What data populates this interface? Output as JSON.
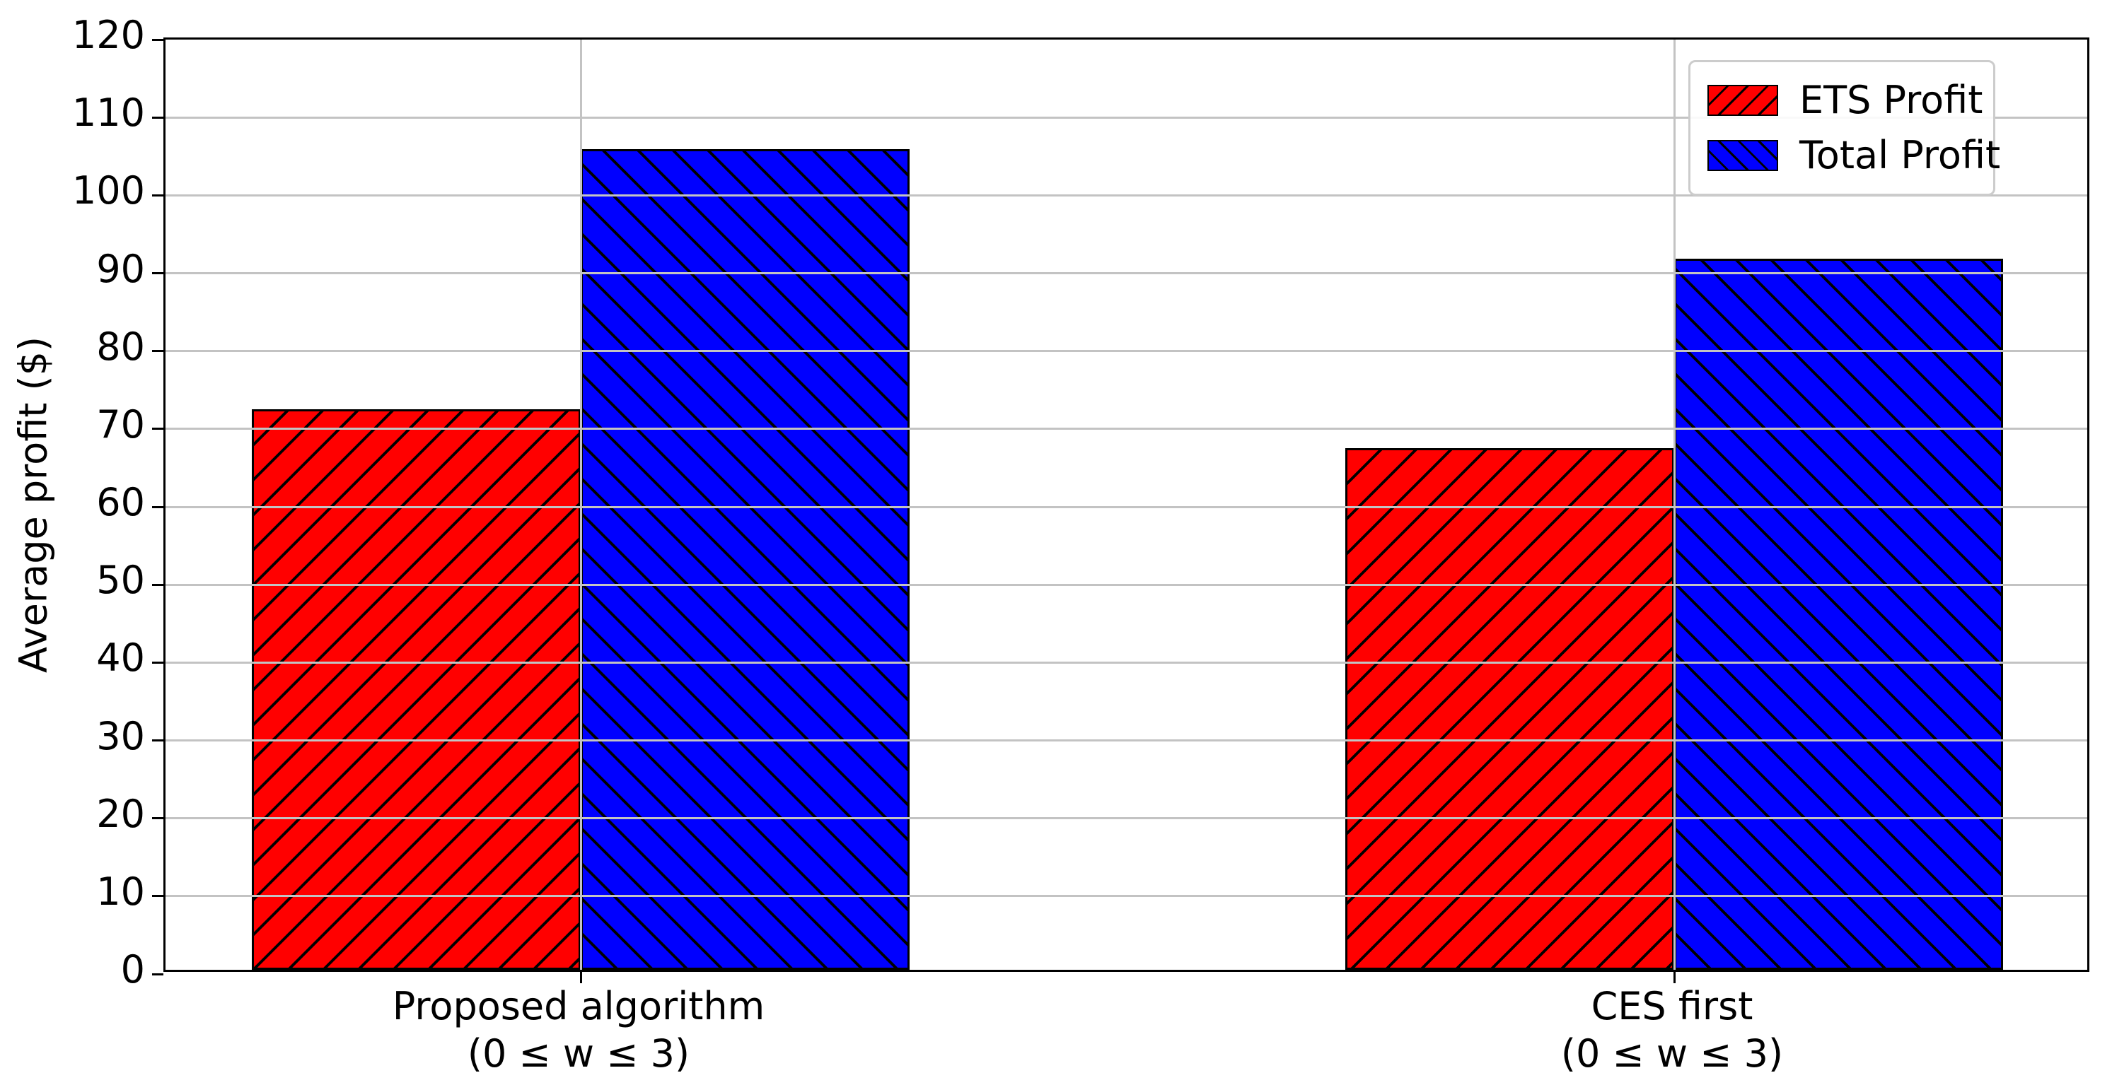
{
  "chart_data": {
    "type": "bar",
    "categories": [
      {
        "line1": "Proposed algorithm",
        "line2": "(0 ≤ w ≤ 3)"
      },
      {
        "line1": "CES first",
        "line2": "(0 ≤ w ≤ 3)"
      }
    ],
    "series": [
      {
        "name": "ETS Profit",
        "color": "#ff0000",
        "hatch": "/",
        "values": [
          72.0,
          67.0
        ]
      },
      {
        "name": "Total Profit",
        "color": "#0000ff",
        "hatch": "\\",
        "values": [
          105.4,
          91.3
        ]
      }
    ],
    "title": "",
    "xlabel": "",
    "ylabel": "Average profit ($)",
    "ylim": [
      0,
      120
    ],
    "yticks": [
      0,
      10,
      20,
      30,
      40,
      50,
      60,
      70,
      80,
      90,
      100,
      110,
      120
    ],
    "grid": "on",
    "grid_above_bars": true,
    "legend_position": "upper right",
    "hatch_color": "#000000",
    "grid_color": "#c3c3c3"
  }
}
